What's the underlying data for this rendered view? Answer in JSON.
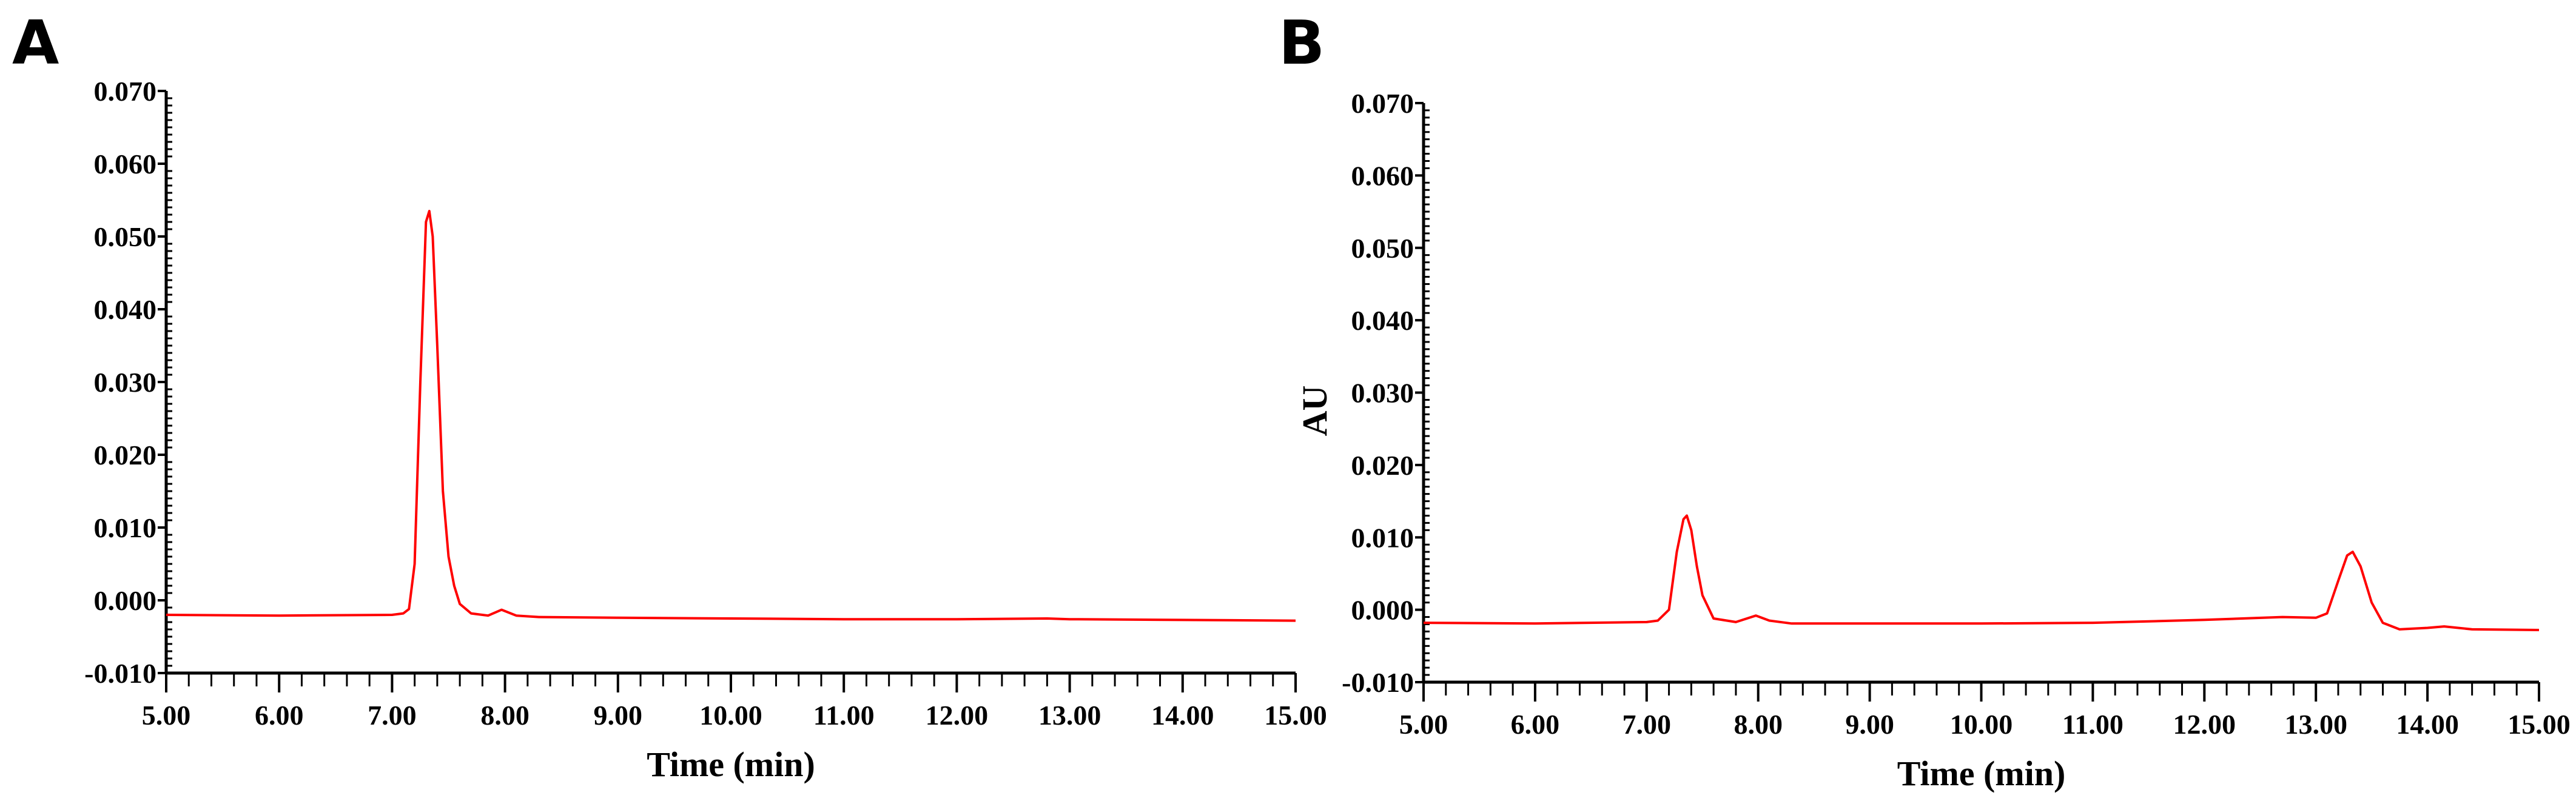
{
  "chart_data": [
    {
      "type": "line",
      "panel_label": "A",
      "title": "",
      "xlabel": "Time (min)",
      "ylabel": "",
      "xlim": [
        5,
        15
      ],
      "ylim": [
        -0.01,
        0.07
      ],
      "xticks": [
        "5.00",
        "6.00",
        "7.00",
        "8.00",
        "9.00",
        "10.00",
        "11.00",
        "12.00",
        "13.00",
        "14.00",
        "15.00"
      ],
      "yticks": [
        "-0.010",
        "0.000",
        "0.010",
        "0.020",
        "0.030",
        "0.040",
        "0.050",
        "0.060",
        "0.070"
      ],
      "grid": false,
      "series": [
        {
          "name": "A",
          "color": "#ff0000",
          "x": [
            5,
            6,
            7,
            7.1,
            7.15,
            7.2,
            7.25,
            7.3,
            7.33,
            7.36,
            7.4,
            7.45,
            7.5,
            7.55,
            7.6,
            7.7,
            7.85,
            7.97,
            8.1,
            8.3,
            9,
            10,
            11,
            12,
            12.8,
            13,
            14,
            15
          ],
          "y": [
            -0.002,
            -0.0021,
            -0.002,
            -0.0018,
            -0.0012,
            0.005,
            0.03,
            0.052,
            0.0535,
            0.05,
            0.035,
            0.015,
            0.006,
            0.002,
            -0.0005,
            -0.0018,
            -0.0021,
            -0.0013,
            -0.0021,
            -0.0023,
            -0.0024,
            -0.0025,
            -0.0026,
            -0.0026,
            -0.0025,
            -0.0026,
            -0.0027,
            -0.0028
          ]
        }
      ]
    },
    {
      "type": "line",
      "panel_label": "B",
      "title": "",
      "xlabel": "Time (min)",
      "ylabel": "AU",
      "xlim": [
        5,
        15
      ],
      "ylim": [
        -0.01,
        0.07
      ],
      "xticks": [
        "5.00",
        "6.00",
        "7.00",
        "8.00",
        "9.00",
        "10.00",
        "11.00",
        "12.00",
        "13.00",
        "14.00",
        "15.00"
      ],
      "yticks": [
        "-0.010",
        "0.000",
        "0.010",
        "0.020",
        "0.030",
        "0.040",
        "0.050",
        "0.060",
        "0.070"
      ],
      "grid": false,
      "series": [
        {
          "name": "B",
          "color": "#ff0000",
          "x": [
            5,
            6,
            7,
            7.1,
            7.2,
            7.27,
            7.33,
            7.36,
            7.4,
            7.45,
            7.5,
            7.6,
            7.8,
            7.98,
            8.1,
            8.3,
            9,
            10,
            11,
            12,
            12.7,
            13,
            13.1,
            13.2,
            13.28,
            13.33,
            13.4,
            13.5,
            13.6,
            13.75,
            14,
            14.15,
            14.4,
            15
          ],
          "y": [
            -0.0018,
            -0.0019,
            -0.0017,
            -0.0015,
            0.0,
            0.008,
            0.0125,
            0.013,
            0.011,
            0.006,
            0.002,
            -0.0012,
            -0.0017,
            -0.0008,
            -0.0015,
            -0.0019,
            -0.0019,
            -0.0019,
            -0.0018,
            -0.0014,
            -0.001,
            -0.0011,
            -0.0005,
            0.004,
            0.0075,
            0.008,
            0.006,
            0.001,
            -0.0018,
            -0.0027,
            -0.0025,
            -0.0023,
            -0.0027,
            -0.0028
          ]
        }
      ]
    }
  ]
}
